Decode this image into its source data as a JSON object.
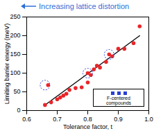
{
  "chart_data": {
    "type": "scatter",
    "x_label": "Tolerance factor, t",
    "y_label": "Limiting barrier energy (meV)",
    "annotation": "Increasing lattice distortion",
    "annotation_color": "#2f6fd6",
    "legend_text": "F-centered compounds",
    "legend_color": "#2a3fd1",
    "x": [
      0.66,
      0.67,
      0.68,
      0.7,
      0.71,
      0.72,
      0.73,
      0.74,
      0.76,
      0.78,
      0.8,
      0.8,
      0.81,
      0.82,
      0.83,
      0.84,
      0.86,
      0.87,
      0.88,
      0.9,
      0.92,
      0.95,
      0.97
    ],
    "values": [
      15,
      68,
      22,
      30,
      35,
      40,
      45,
      55,
      60,
      62,
      75,
      100,
      95,
      110,
      120,
      115,
      130,
      150,
      145,
      165,
      165,
      180,
      225
    ],
    "color": "#e8262a",
    "highlighted": {
      "x": [
        0.66,
        0.8,
        0.87
      ],
      "values": [
        68,
        100,
        150
      ],
      "color": "#2a3fd1"
    },
    "trend_line": {
      "x": [
        0.66,
        0.97
      ],
      "values": [
        15,
        200
      ],
      "color": "#000000"
    },
    "xlim": [
      0.6,
      1.0
    ],
    "xticks": [
      0.6,
      0.7,
      0.8,
      0.9,
      {
        "value": 1.0,
        "label": "1.0"
      }
    ],
    "ylim": [
      0,
      250
    ],
    "yticks": [
      0,
      50,
      100,
      150,
      200,
      250
    ],
    "grid": false
  }
}
